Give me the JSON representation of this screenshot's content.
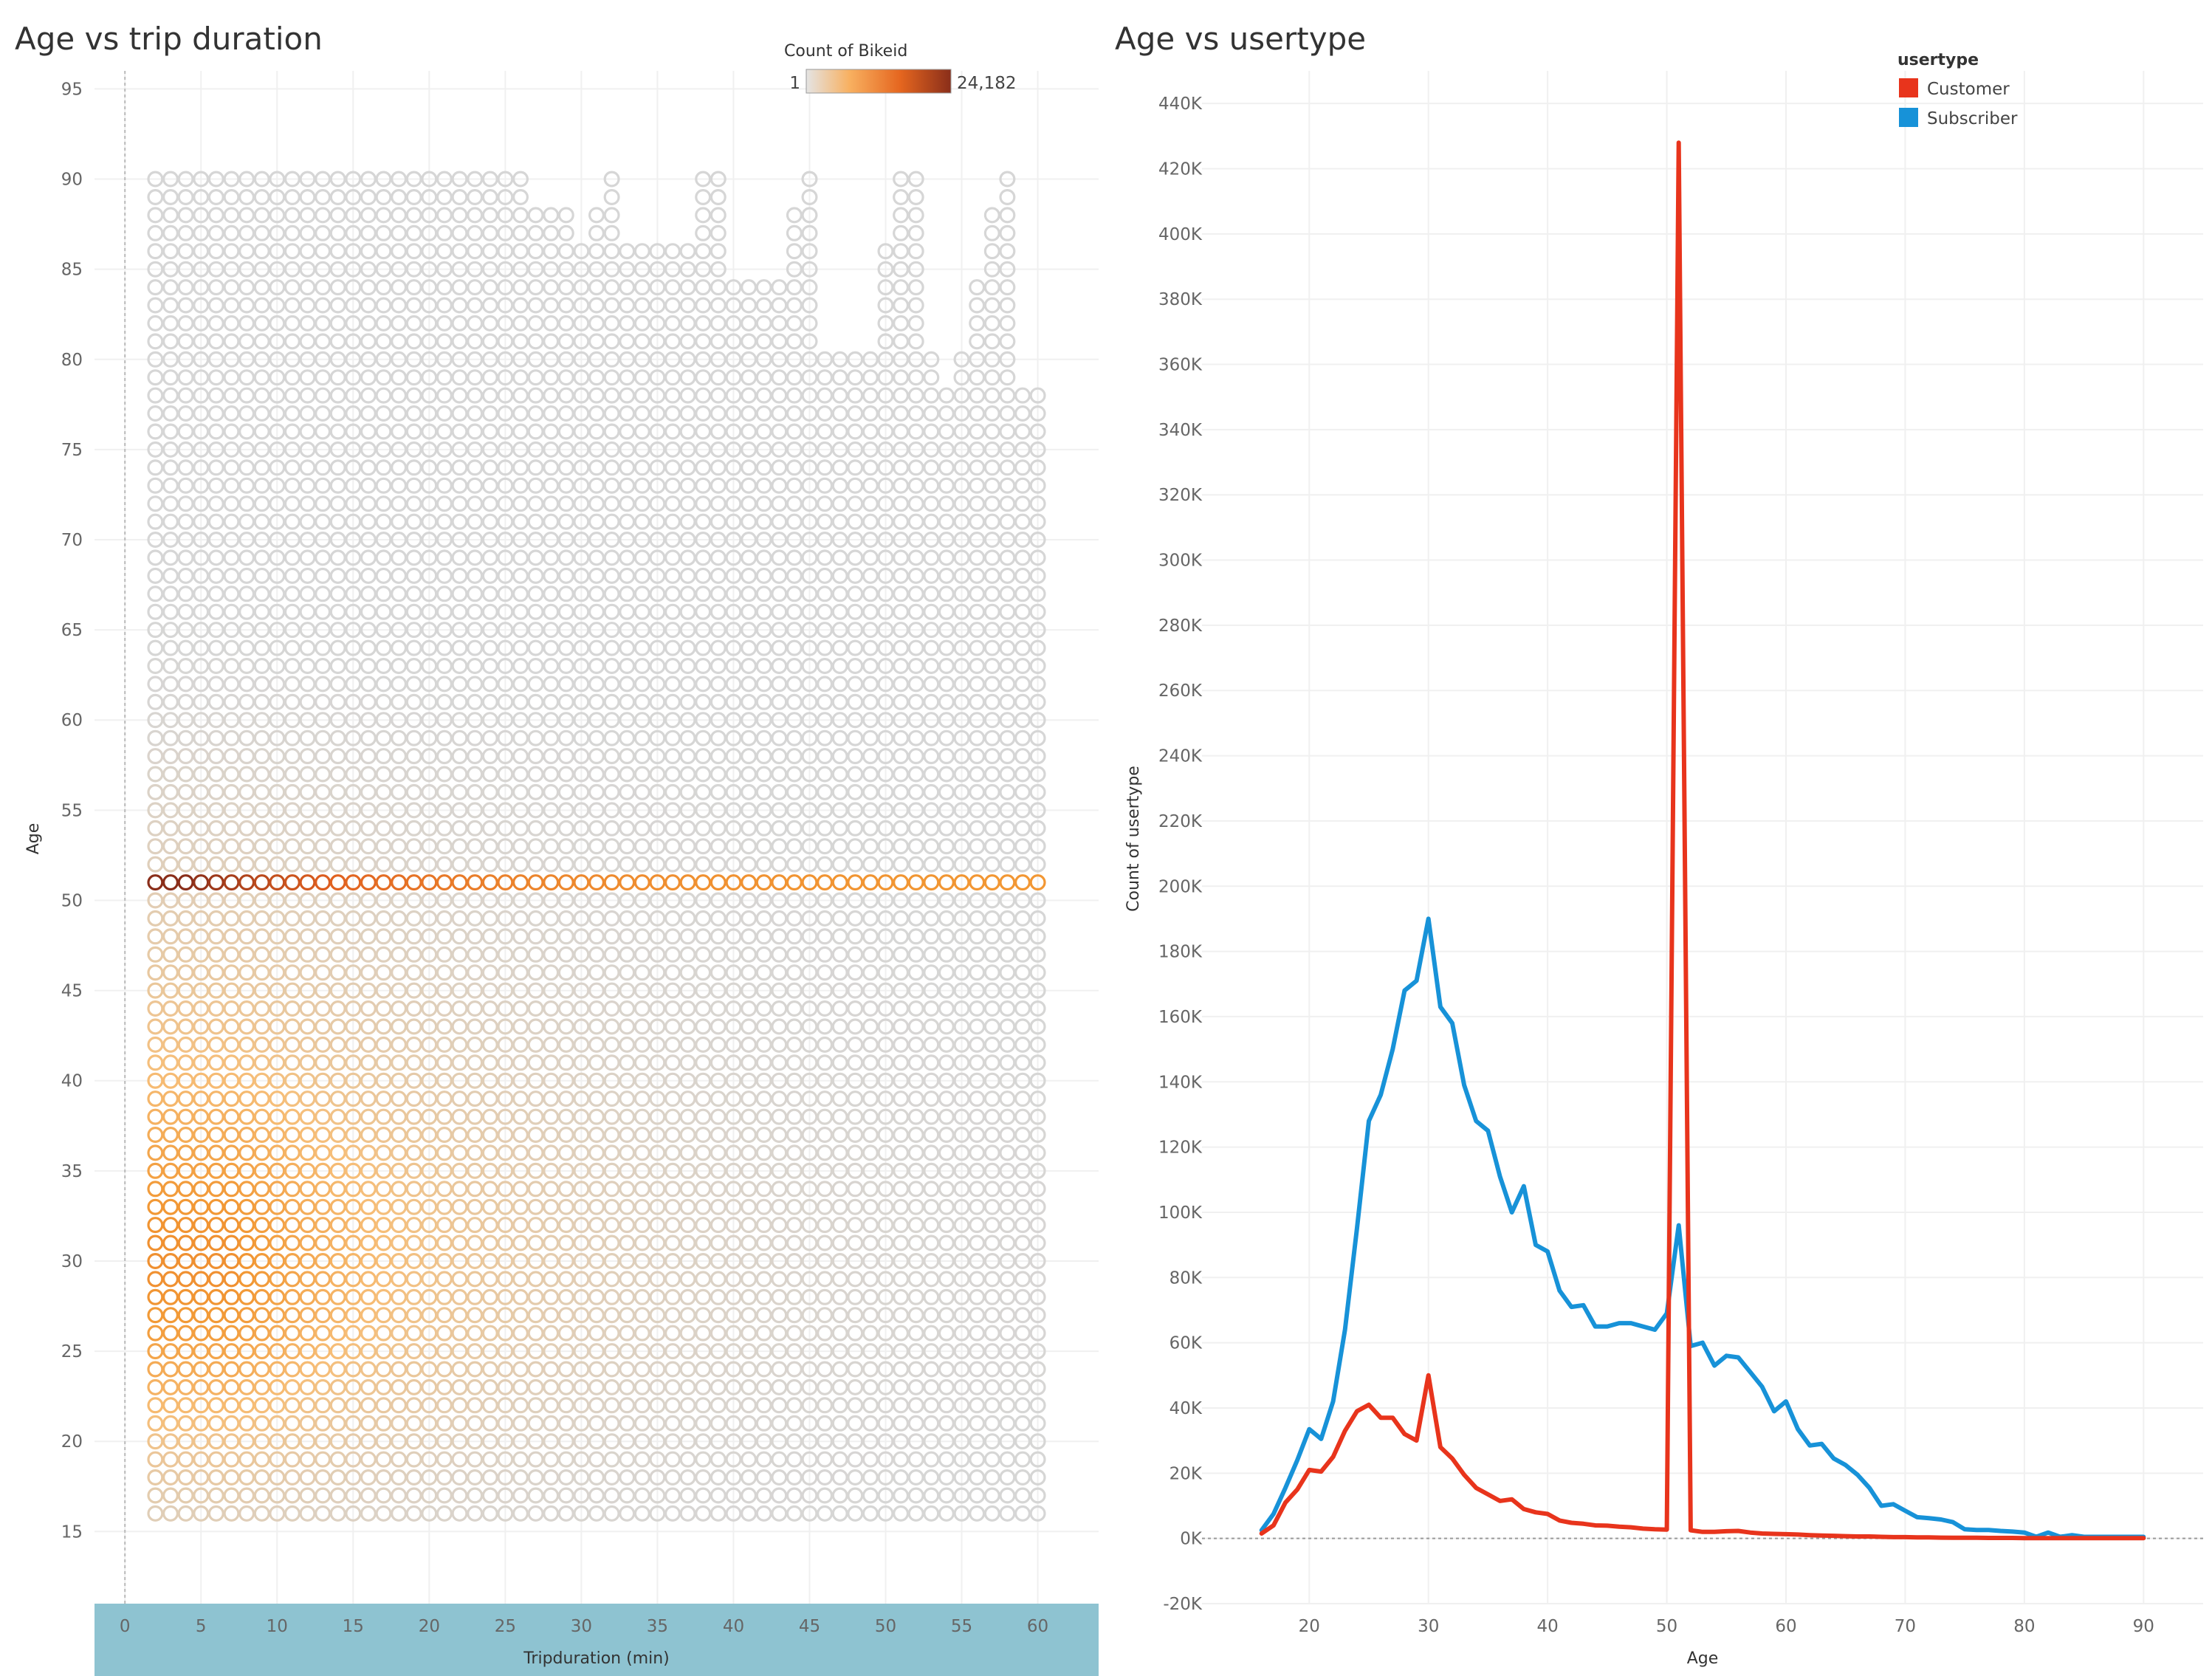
{
  "colors": {
    "heat_low": "#d6d6d6",
    "heat_mid": "#f7a442",
    "heat_high": "#e0601f",
    "heat_max": "#8a2e1a",
    "customer": "#e8341c",
    "subscriber": "#1792d8",
    "xaxis_band": "#8ec3d1"
  },
  "chart_data": [
    {
      "type": "heatmap",
      "title": "Age vs trip duration",
      "xlabel": "Tripduration (min)",
      "ylabel": "Age",
      "xlim": [
        -2,
        64
      ],
      "ylim": [
        11,
        96
      ],
      "xticks": [
        0,
        5,
        10,
        15,
        20,
        25,
        30,
        35,
        40,
        45,
        50,
        55,
        60
      ],
      "yticks": [
        15,
        20,
        25,
        30,
        35,
        40,
        45,
        50,
        55,
        60,
        65,
        70,
        75,
        80,
        85,
        90,
        95
      ],
      "cells": {
        "x_from": 2,
        "x_to": 60,
        "age_from": 16,
        "age_to": 90
      },
      "color_legend": {
        "title": "Count of Bikeid",
        "min_label": "1",
        "max_label": "24,182",
        "min": 1,
        "max": 24182
      },
      "peak_age": 51,
      "peak_duration_min": 8
    },
    {
      "type": "line",
      "title": "Age vs usertype",
      "xlabel": "Age",
      "ylabel": "Count of usertype",
      "xlim": [
        11,
        95
      ],
      "ylim": [
        -20000,
        450000
      ],
      "xticks": [
        20,
        30,
        40,
        50,
        60,
        70,
        80,
        90
      ],
      "yticks": [
        -20000,
        0,
        20000,
        40000,
        60000,
        80000,
        100000,
        120000,
        140000,
        160000,
        180000,
        200000,
        220000,
        240000,
        260000,
        280000,
        300000,
        320000,
        340000,
        360000,
        380000,
        400000,
        420000,
        440000
      ],
      "ytick_labels": [
        "-20K",
        "0K",
        "20K",
        "40K",
        "60K",
        "80K",
        "100K",
        "120K",
        "140K",
        "160K",
        "180K",
        "200K",
        "220K",
        "240K",
        "260K",
        "280K",
        "300K",
        "320K",
        "340K",
        "360K",
        "380K",
        "400K",
        "420K",
        "440K"
      ],
      "legend_title": "usertype",
      "legend_position": "top-right",
      "x": [
        16,
        17,
        18,
        19,
        20,
        21,
        22,
        23,
        24,
        25,
        26,
        27,
        28,
        29,
        30,
        31,
        32,
        33,
        34,
        35,
        36,
        37,
        38,
        39,
        40,
        41,
        42,
        43,
        44,
        45,
        46,
        47,
        48,
        49,
        50,
        51,
        52,
        53,
        54,
        55,
        56,
        57,
        58,
        59,
        60,
        61,
        62,
        63,
        64,
        65,
        66,
        67,
        68,
        69,
        70,
        71,
        72,
        73,
        74,
        75,
        76,
        77,
        78,
        79,
        80,
        81,
        82,
        83,
        84,
        85,
        86,
        87,
        88,
        89,
        90
      ],
      "series": [
        {
          "name": "Customer",
          "values": [
            1500,
            4000,
            11000,
            15000,
            21000,
            20500,
            25000,
            33000,
            39000,
            41000,
            37000,
            37000,
            32000,
            30000,
            50000,
            28000,
            24500,
            19500,
            15500,
            13500,
            11500,
            12000,
            9000,
            8000,
            7500,
            5500,
            4800,
            4500,
            4000,
            3900,
            3600,
            3400,
            3000,
            2800,
            2700,
            428000,
            2500,
            2000,
            2000,
            2200,
            2300,
            1800,
            1500,
            1400,
            1300,
            1200,
            1000,
            900,
            800,
            700,
            600,
            600,
            500,
            400,
            400,
            300,
            300,
            250,
            200,
            200,
            200,
            150,
            150,
            150,
            100,
            100,
            100,
            100,
            100,
            100,
            100,
            100,
            100,
            100,
            100
          ]
        },
        {
          "name": "Subscriber",
          "values": [
            2500,
            7500,
            15500,
            24000,
            33500,
            30500,
            42000,
            64000,
            95000,
            128000,
            136000,
            150000,
            168000,
            171000,
            190000,
            163000,
            158000,
            139000,
            128000,
            125000,
            111000,
            100000,
            108000,
            90000,
            88000,
            76000,
            71000,
            71500,
            65000,
            65000,
            66000,
            66000,
            65000,
            64000,
            69000,
            96000,
            59000,
            60000,
            53000,
            56000,
            55500,
            51000,
            46500,
            39000,
            42000,
            33500,
            28500,
            29000,
            24500,
            22500,
            19500,
            15500,
            10000,
            10500,
            8500,
            6500,
            6200,
            5800,
            5000,
            2800,
            2600,
            2600,
            2300,
            2100,
            1800,
            500,
            1800,
            500,
            1000,
            500,
            500,
            500,
            500,
            500,
            500
          ]
        }
      ]
    }
  ]
}
